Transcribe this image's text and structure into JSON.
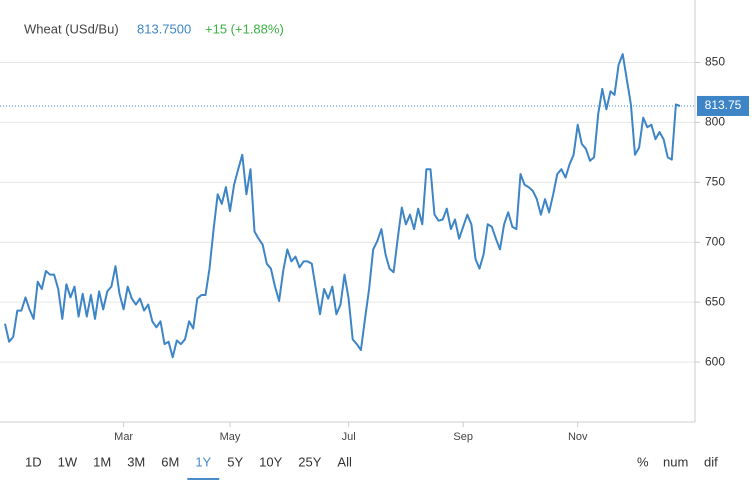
{
  "chart_data": {
    "type": "line",
    "title": "Wheat (USd/Bu)",
    "price": "813.7500",
    "change": "+15 (+1.88%)",
    "series": [
      {
        "name": "Wheat",
        "color": "#3d85c6",
        "values": [
          632,
          617,
          621,
          643,
          643,
          654,
          644,
          636,
          667,
          661,
          676,
          673,
          673,
          661,
          636,
          665,
          654,
          663,
          638,
          657,
          638,
          656,
          636,
          659,
          644,
          659,
          663,
          680,
          657,
          644,
          663,
          653,
          648,
          653,
          643,
          648,
          634,
          629,
          634,
          615,
          617,
          604,
          618,
          615,
          619,
          634,
          628,
          653,
          656,
          656,
          678,
          711,
          740,
          732,
          746,
          726,
          748,
          761,
          773,
          740,
          761,
          709,
          703,
          698,
          682,
          678,
          663,
          651,
          676,
          694,
          684,
          688,
          679,
          684,
          684,
          682,
          661,
          640,
          661,
          653,
          663,
          640,
          648,
          673,
          653,
          619,
          615,
          610,
          636,
          661,
          694,
          701,
          711,
          690,
          678,
          675,
          703,
          729,
          715,
          723,
          711,
          728,
          715,
          761,
          761,
          723,
          718,
          719,
          728,
          711,
          719,
          703,
          713,
          723,
          715,
          686,
          678,
          690,
          715,
          713,
          703,
          694,
          715,
          725,
          713,
          711,
          757,
          748,
          746,
          743,
          736,
          723,
          736,
          725,
          740,
          757,
          761,
          754,
          765,
          773,
          798,
          782,
          778,
          768,
          771,
          807,
          828,
          811,
          826,
          823,
          848,
          857,
          836,
          815,
          773,
          779,
          804,
          796,
          798,
          786,
          792,
          786,
          771,
          769,
          815,
          813.75
        ]
      }
    ],
    "current": 813.75,
    "xlim": [
      0,
      165
    ],
    "xticks": [
      {
        "value": 29,
        "label": "Mar"
      },
      {
        "value": 55,
        "label": "May"
      },
      {
        "value": 84,
        "label": "Jul"
      },
      {
        "value": 112,
        "label": "Sep"
      },
      {
        "value": 140,
        "label": "Nov"
      }
    ],
    "ylim": [
      550,
      898
    ],
    "yticks": [
      600,
      650,
      700,
      750,
      800,
      850
    ],
    "grid": true,
    "ranges": [
      "1D",
      "1W",
      "1M",
      "3M",
      "6M",
      "1Y",
      "5Y",
      "10Y",
      "25Y",
      "All"
    ],
    "selected_range": 5,
    "modes": [
      "%",
      "num",
      "dif"
    ]
  }
}
